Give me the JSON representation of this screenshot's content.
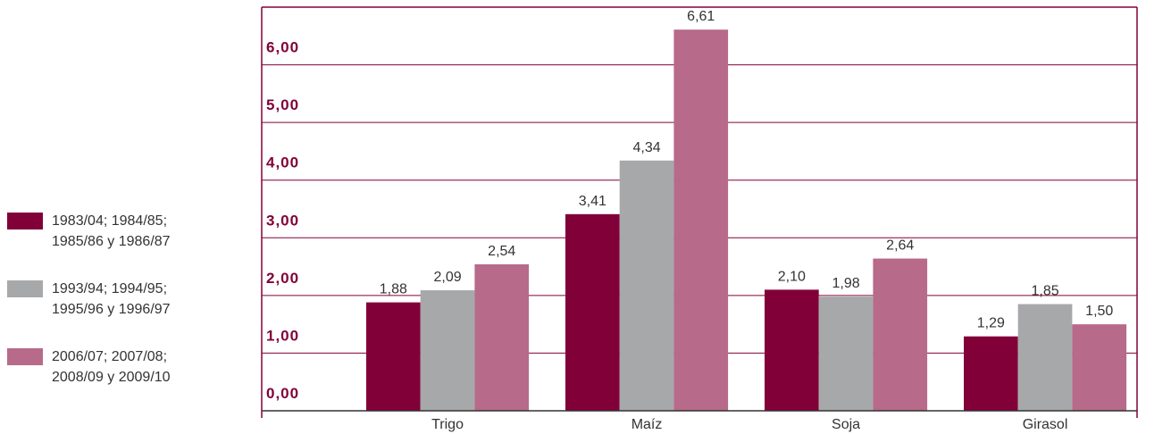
{
  "chart_data": {
    "type": "bar",
    "categories": [
      "Trigo",
      "Maíz",
      "Soja",
      "Girasol"
    ],
    "series": [
      {
        "name": "1983/04; 1984/85; 1985/86 y 1986/87",
        "color": "#820038",
        "values": [
          1.88,
          3.41,
          2.1,
          1.29
        ],
        "value_labels": [
          "1,88",
          "3,41",
          "2,10",
          "1,29"
        ]
      },
      {
        "name": "1993/94; 1994/95; 1995/96 y 1996/97",
        "color": "#a7a8aa",
        "values": [
          2.09,
          4.34,
          1.98,
          1.85
        ],
        "value_labels": [
          "2,09",
          "4,34",
          "1,98",
          "1,85"
        ]
      },
      {
        "name": "2006/07; 2007/08; 2008/09 y 2009/10",
        "color": "#b76a8a",
        "values": [
          2.54,
          6.61,
          2.64,
          1.5
        ],
        "value_labels": [
          "2,54",
          "6,61",
          "2,64",
          "1,50"
        ]
      }
    ],
    "ylim": [
      0,
      7
    ],
    "yticks": [
      {
        "value": 0,
        "label": "0,00"
      },
      {
        "value": 1,
        "label": "1,00"
      },
      {
        "value": 2,
        "label": "2,00"
      },
      {
        "value": 3,
        "label": "3,00"
      },
      {
        "value": 4,
        "label": "4,00"
      },
      {
        "value": 5,
        "label": "5,00"
      },
      {
        "value": 6,
        "label": "6,00"
      }
    ],
    "grid": true
  }
}
